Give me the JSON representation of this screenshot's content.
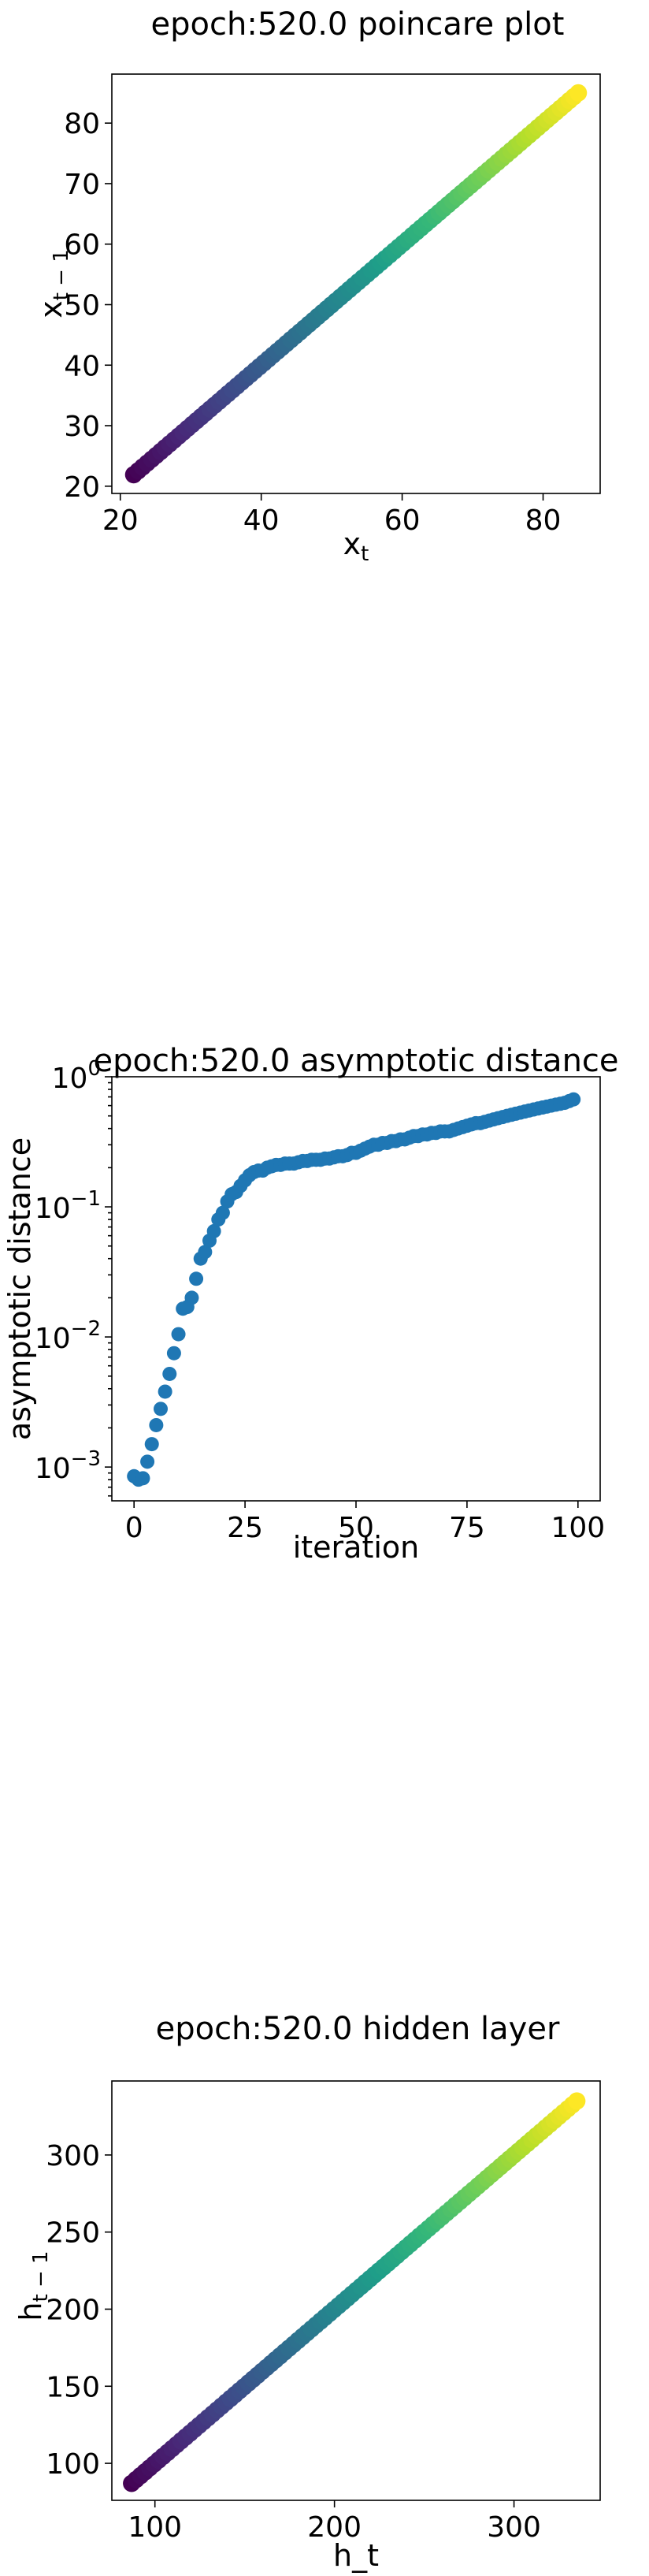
{
  "chart_data": [
    {
      "type": "scatter",
      "title": "epoch:520.0 poincare plot",
      "xlabel_base": "x",
      "xlabel_sub": "t",
      "ylabel_base": "x",
      "ylabel_sub": "t − 1",
      "xlim": [
        18.8,
        88.1
      ],
      "ylim": [
        18.8,
        88.1
      ],
      "xticks": [
        20,
        40,
        60,
        80
      ],
      "yticks": [
        20,
        30,
        40,
        50,
        60,
        70,
        80
      ],
      "x_start": 21.9,
      "x_end": 85.0,
      "n_points": 100,
      "colormap": "viridis"
    },
    {
      "type": "scatter",
      "title": "epoch:520.0 asymptotic distance",
      "xlabel": "iteration",
      "ylabel": "asymptotic distance",
      "yscale": "log",
      "xlim": [
        -5,
        105
      ],
      "ylim": [
        0.00055,
        1.0
      ],
      "xticks": [
        0,
        25,
        50,
        75,
        100
      ],
      "yticks": [
        {
          "base": "10",
          "exp": "−3",
          "value": 0.001
        },
        {
          "base": "10",
          "exp": "−2",
          "value": 0.01
        },
        {
          "base": "10",
          "exp": "−1",
          "value": 0.1
        },
        {
          "base": "10",
          "exp": "0",
          "value": 1.0
        }
      ],
      "color": "#1f77b4",
      "x": [
        0,
        1,
        2,
        3,
        4,
        5,
        6,
        7,
        8,
        9,
        10,
        11,
        12,
        13,
        14,
        15,
        16,
        17,
        18,
        19,
        20,
        21,
        22,
        23,
        24,
        25,
        26,
        27,
        28,
        29,
        30,
        31,
        32,
        33,
        34,
        35,
        36,
        37,
        38,
        39,
        40,
        41,
        42,
        43,
        44,
        45,
        46,
        47,
        48,
        49,
        50,
        51,
        52,
        53,
        54,
        55,
        56,
        57,
        58,
        59,
        60,
        61,
        62,
        63,
        64,
        65,
        66,
        67,
        68,
        69,
        70,
        71,
        72,
        73,
        74,
        75,
        76,
        77,
        78,
        79,
        80,
        81,
        82,
        83,
        84,
        85,
        86,
        87,
        88,
        89,
        90,
        91,
        92,
        93,
        94,
        95,
        96,
        97,
        98,
        99
      ],
      "y": [
        0.00085,
        0.0008,
        0.00082,
        0.0011,
        0.0015,
        0.0021,
        0.0028,
        0.0038,
        0.0052,
        0.0075,
        0.0105,
        0.0165,
        0.017,
        0.02,
        0.028,
        0.04,
        0.045,
        0.055,
        0.065,
        0.08,
        0.09,
        0.11,
        0.125,
        0.13,
        0.145,
        0.16,
        0.175,
        0.185,
        0.19,
        0.19,
        0.2,
        0.205,
        0.21,
        0.21,
        0.215,
        0.215,
        0.215,
        0.22,
        0.225,
        0.225,
        0.23,
        0.23,
        0.23,
        0.235,
        0.235,
        0.24,
        0.245,
        0.245,
        0.25,
        0.26,
        0.26,
        0.27,
        0.28,
        0.29,
        0.3,
        0.3,
        0.31,
        0.31,
        0.32,
        0.32,
        0.33,
        0.33,
        0.34,
        0.35,
        0.35,
        0.36,
        0.36,
        0.37,
        0.37,
        0.38,
        0.38,
        0.38,
        0.39,
        0.4,
        0.41,
        0.42,
        0.43,
        0.44,
        0.44,
        0.45,
        0.46,
        0.47,
        0.48,
        0.49,
        0.5,
        0.51,
        0.52,
        0.53,
        0.54,
        0.55,
        0.56,
        0.57,
        0.58,
        0.59,
        0.6,
        0.61,
        0.62,
        0.63,
        0.65,
        0.67
      ]
    },
    {
      "type": "scatter",
      "title": "epoch:520.0 hidden layer",
      "xlabel": "h_t",
      "ylabel_base": "h",
      "ylabel_sub": "t − 1",
      "xlim": [
        76,
        348
      ],
      "ylim": [
        76,
        348
      ],
      "xticks": [
        100,
        200,
        300
      ],
      "yticks": [
        100,
        150,
        200,
        250,
        300
      ],
      "x_start": 87,
      "x_end": 335,
      "n_points": 100,
      "colormap": "viridis"
    }
  ]
}
